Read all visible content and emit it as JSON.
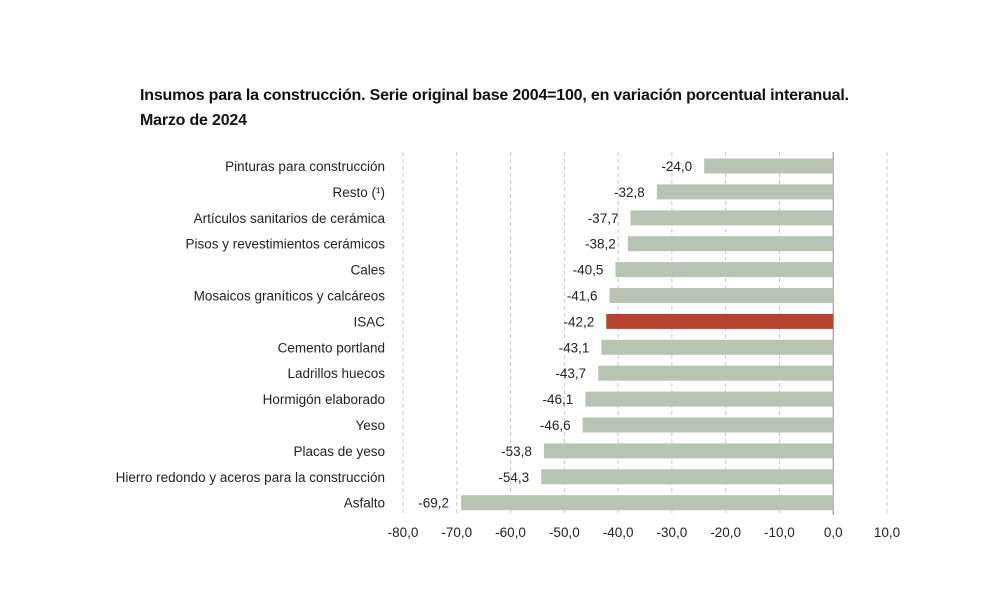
{
  "chart_data": {
    "type": "bar",
    "orientation": "horizontal",
    "title": "Insumos para la construcción. Serie original base 2004=100, en variación porcentual interanual.",
    "subtitle": "Marzo de 2024",
    "categories": [
      "Pinturas para construcción",
      "Resto (¹)",
      "Artículos sanitarios de cerámica",
      "Pisos y revestimientos cerámicos",
      "Cales",
      "Mosaicos graníticos y calcáreos",
      "ISAC",
      "Cemento portland",
      "Ladrillos huecos",
      "Hormigón elaborado",
      "Yeso",
      "Placas de yeso",
      "Hierro redondo y aceros para la construcción",
      "Asfalto"
    ],
    "values": [
      -24.0,
      -32.8,
      -37.7,
      -38.2,
      -40.5,
      -41.6,
      -42.2,
      -43.1,
      -43.7,
      -46.1,
      -46.6,
      -53.8,
      -54.3,
      -69.2
    ],
    "value_labels": [
      "-24,0",
      "-32,8",
      "-37,7",
      "-38,2",
      "-40,5",
      "-41,6",
      "-42,2",
      "-43,1",
      "-43,7",
      "-46,1",
      "-46,6",
      "-53,8",
      "-54,3",
      "-69,2"
    ],
    "highlight": "ISAC",
    "xlim": [
      -80,
      10
    ],
    "xticks": [
      -80,
      -70,
      -60,
      -50,
      -40,
      -30,
      -20,
      -10,
      0,
      10
    ],
    "xtick_labels": [
      "-80,0",
      "-70,0",
      "-60,0",
      "-50,0",
      "-40,0",
      "-30,0",
      "-20,0",
      "-10,0",
      "0,0",
      "10,0"
    ],
    "grid": "vertical dashed",
    "xlabel": "",
    "ylabel": "",
    "colors": {
      "bar": "#b7c4b4",
      "highlight": "#b5432d",
      "grid": "#c8c8c8",
      "axis": "#888888"
    }
  }
}
